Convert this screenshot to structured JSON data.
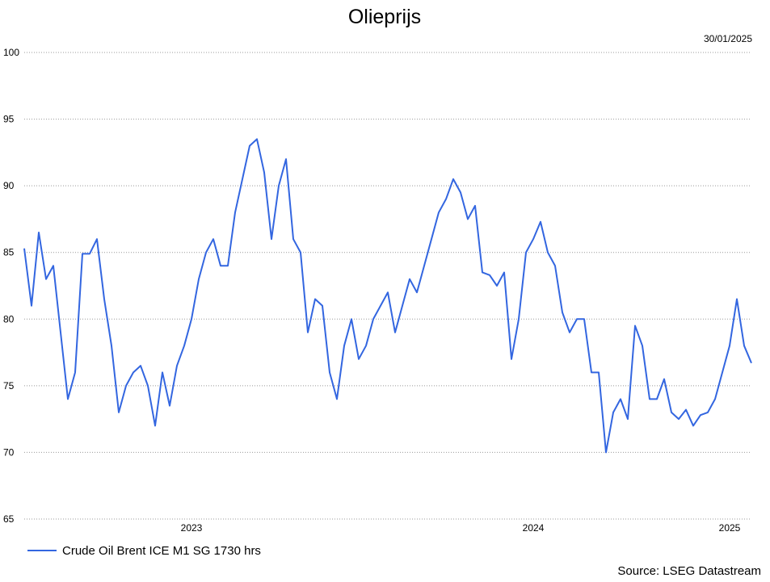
{
  "chart_data": {
    "type": "line",
    "title": "Olieprijs",
    "date": "30/01/2025",
    "source": "Source: LSEG Datastream",
    "categories": [
      null,
      null,
      null,
      null,
      null,
      null,
      null,
      null,
      null,
      null,
      null,
      null,
      null,
      null,
      null,
      null,
      null,
      null,
      null,
      null,
      null,
      null,
      null,
      "2023",
      null,
      null,
      null,
      null,
      null,
      null,
      null,
      null,
      null,
      null,
      null,
      null,
      null,
      null,
      null,
      null,
      null,
      null,
      null,
      null,
      null,
      null,
      null,
      null,
      null,
      null,
      null,
      null,
      null,
      null,
      null,
      null,
      null,
      null,
      null,
      null,
      null,
      null,
      null,
      null,
      null,
      null,
      null,
      null,
      null,
      null,
      "2024",
      null,
      null,
      null,
      null,
      null,
      null,
      null,
      null,
      null,
      null,
      null,
      null,
      null,
      null,
      null,
      null,
      null,
      null,
      null,
      null,
      null,
      null,
      null,
      null,
      null,
      null,
      "2025",
      null,
      null,
      null
    ],
    "series": [
      {
        "name": "Crude Oil Brent ICE M1 SG 1730 hrs",
        "color": "#3366e0",
        "values": [
          85.3,
          81,
          86.5,
          83,
          84,
          79,
          74,
          76,
          84.9,
          84.9,
          86,
          81.5,
          78,
          73,
          75,
          76,
          76.5,
          75,
          72,
          76,
          73.5,
          76.5,
          78,
          80,
          83,
          85,
          86,
          84,
          84,
          88,
          90.5,
          93,
          93.5,
          91,
          86,
          90,
          92,
          86,
          85,
          79,
          81.5,
          81,
          76,
          74,
          78,
          80,
          77,
          78,
          80,
          81,
          82,
          79,
          81,
          83,
          82,
          84,
          86,
          88,
          89,
          90.5,
          89.5,
          87.5,
          88.5,
          83.5,
          83.3,
          82.5,
          83.5,
          77,
          80,
          85,
          86,
          87.3,
          85,
          84,
          80.5,
          79,
          80,
          80,
          76,
          76,
          70,
          73,
          74,
          72.5,
          79.5,
          78,
          74,
          74,
          75.5,
          73,
          72.5,
          73.2,
          72,
          72.8,
          73,
          74,
          76,
          78,
          81.5,
          78,
          76.7
        ]
      }
    ],
    "ylim": [
      65,
      100
    ],
    "yticks": [
      65,
      70,
      75,
      80,
      85,
      90,
      95,
      100
    ],
    "grid": true
  }
}
